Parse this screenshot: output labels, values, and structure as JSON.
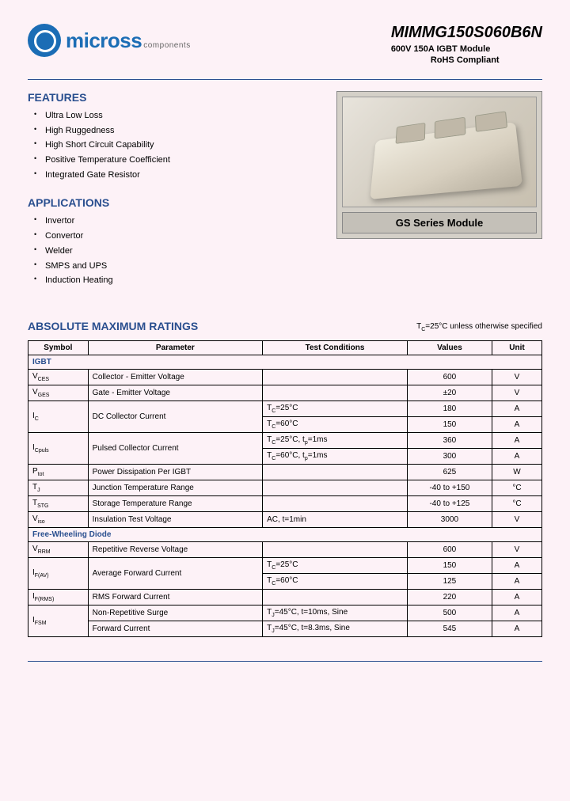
{
  "header": {
    "logo_main": "micross",
    "logo_sub": "components",
    "part_number": "MIMMG150S060B6N",
    "subtitle_line1": "600V 150A   IGBT Module",
    "subtitle_line2": "RoHS  Compliant"
  },
  "features": {
    "title": "FEATURES",
    "items": [
      "Ultra Low Loss",
      "High Ruggedness",
      "High Short Circuit Capability",
      "Positive Temperature Coefficient",
      "Integrated Gate Resistor"
    ]
  },
  "applications": {
    "title": "APPLICATIONS",
    "items": [
      "Invertor",
      "Convertor",
      "Welder",
      "SMPS and UPS",
      "Induction Heating"
    ]
  },
  "product_caption": "GS Series Module",
  "ratings": {
    "title": "ABSOLUTE MAXIMUM RATINGS",
    "note": "TC=25°C unless otherwise specified",
    "columns": [
      "Symbol",
      "Parameter",
      "Test Conditions",
      "Values",
      "Unit"
    ],
    "igbt_header": "IGBT",
    "diode_header": "Free-Wheeling Diode",
    "igbt_rows": [
      {
        "sym": "VCES",
        "param": "Collector - Emitter Voltage",
        "test": "",
        "val": "600",
        "unit": "V"
      },
      {
        "sym": "VGES",
        "param": "Gate - Emitter Voltage",
        "test": "",
        "val": "±20",
        "unit": "V"
      },
      {
        "sym": "IC",
        "param": "DC Collector Current",
        "test": "TC=25°C",
        "val": "180",
        "unit": "A",
        "rowspan": 2
      },
      {
        "test": "TC=60°C",
        "val": "150",
        "unit": "A"
      },
      {
        "sym": "ICpuls",
        "param": "Pulsed Collector Current",
        "test": "TC=25°C, tp=1ms",
        "val": "360",
        "unit": "A",
        "rowspan": 2
      },
      {
        "test": "TC=60°C, tp=1ms",
        "val": "300",
        "unit": "A"
      },
      {
        "sym": "Ptot",
        "param": "Power Dissipation Per IGBT",
        "test": "",
        "val": "625",
        "unit": "W"
      },
      {
        "sym": "TJ",
        "param": "Junction Temperature Range",
        "test": "",
        "val": "-40 to +150",
        "unit": "°C"
      },
      {
        "sym": "TSTG",
        "param": "Storage Temperature Range",
        "test": "",
        "val": "-40 to +125",
        "unit": "°C"
      },
      {
        "sym": "Viso",
        "param": "Insulation Test Voltage",
        "test": "AC, t=1min",
        "val": "3000",
        "unit": "V"
      }
    ],
    "diode_rows": [
      {
        "sym": "VRRM",
        "param": "Repetitive Reverse Voltage",
        "test": "",
        "val": "600",
        "unit": "V"
      },
      {
        "sym": "IF(AV)",
        "param": "Average Forward Current",
        "test": "TC=25°C",
        "val": "150",
        "unit": "A",
        "rowspan": 2
      },
      {
        "test": "TC=60°C",
        "val": "125",
        "unit": "A"
      },
      {
        "sym": "IF(RMS)",
        "param": "RMS Forward Current",
        "test": "",
        "val": "220",
        "unit": "A"
      },
      {
        "sym": "IFSM",
        "param": "Non-Repetitive Surge",
        "test": "TJ=45°C, t=10ms, Sine",
        "val": "500",
        "unit": "A",
        "rowspan": 2
      },
      {
        "param": "Forward Current",
        "test": "TJ=45°C, t=8.3ms, Sine",
        "val": "545",
        "unit": "A"
      }
    ]
  },
  "colors": {
    "page_bg": "#fdf2f7",
    "accent": "#2a4f8f",
    "logo": "#1b6db5",
    "border": "#000000"
  }
}
